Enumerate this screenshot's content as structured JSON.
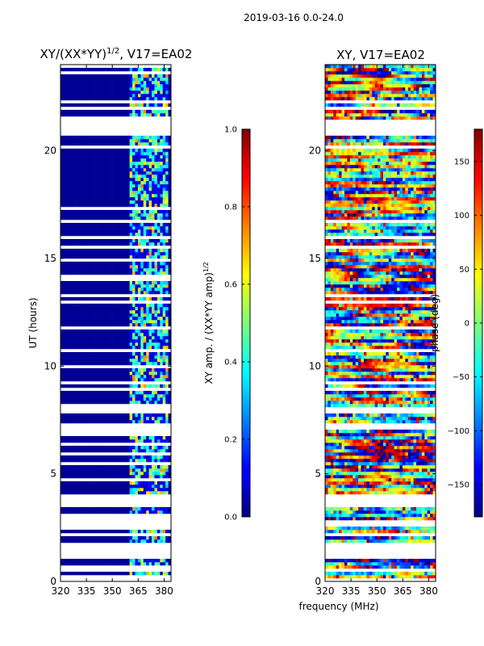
{
  "figure": {
    "suptitle": "2019-03-16 0.0-24.0"
  },
  "chart_data": [
    {
      "type": "heatmap",
      "title_prefix": "XY/(XX*YY)",
      "title_exp": "1/2",
      "title_suffix": ", V17=EA02",
      "xlabel": "",
      "ylabel": "UT (hours)",
      "xlim": [
        320,
        384
      ],
      "ylim": [
        0,
        24
      ],
      "xticks": [
        320,
        335,
        350,
        365,
        380
      ],
      "yticks": [
        0,
        5,
        10,
        15,
        20
      ],
      "colorbar": {
        "label_prefix": "XY amp. / (XX*YY amp)",
        "label_exp": "1/2",
        "range": [
          0.0,
          1.0
        ],
        "ticks": [
          "0.0",
          "0.2",
          "0.4",
          "0.6",
          "0.8",
          "1.0"
        ],
        "tick_values": [
          0.0,
          0.2,
          0.4,
          0.6,
          0.8,
          1.0
        ]
      },
      "empty_time_ranges_hours": [
        [
          0.0,
          0.3
        ],
        [
          1.0,
          1.8
        ],
        [
          2.4,
          2.6
        ],
        [
          3.5,
          4.0
        ],
        [
          6.7,
          7.3
        ],
        [
          20.7,
          21.5
        ]
      ],
      "signal_freq_range_MHz": [
        360,
        382
      ],
      "dominant_value_outside_band": 0.02
    },
    {
      "type": "heatmap",
      "title": "XY, V17=EA02",
      "xlabel": "frequency (MHz)",
      "ylabel": "",
      "xlim": [
        320,
        384
      ],
      "ylim": [
        0,
        24
      ],
      "xticks": [
        320,
        335,
        350,
        365,
        380
      ],
      "yticks": [
        0,
        5,
        10,
        15,
        20
      ],
      "colorbar": {
        "label": "phase (deg)",
        "range": [
          -180,
          180
        ],
        "ticks": [
          "−150",
          "−100",
          "−50",
          "0",
          "50",
          "100",
          "150"
        ],
        "tick_values": [
          -150,
          -100,
          -50,
          0,
          50,
          100,
          150
        ]
      },
      "empty_time_ranges_hours": [
        [
          1.1,
          1.8
        ],
        [
          3.5,
          4.0
        ],
        [
          20.7,
          21.5
        ]
      ]
    }
  ]
}
